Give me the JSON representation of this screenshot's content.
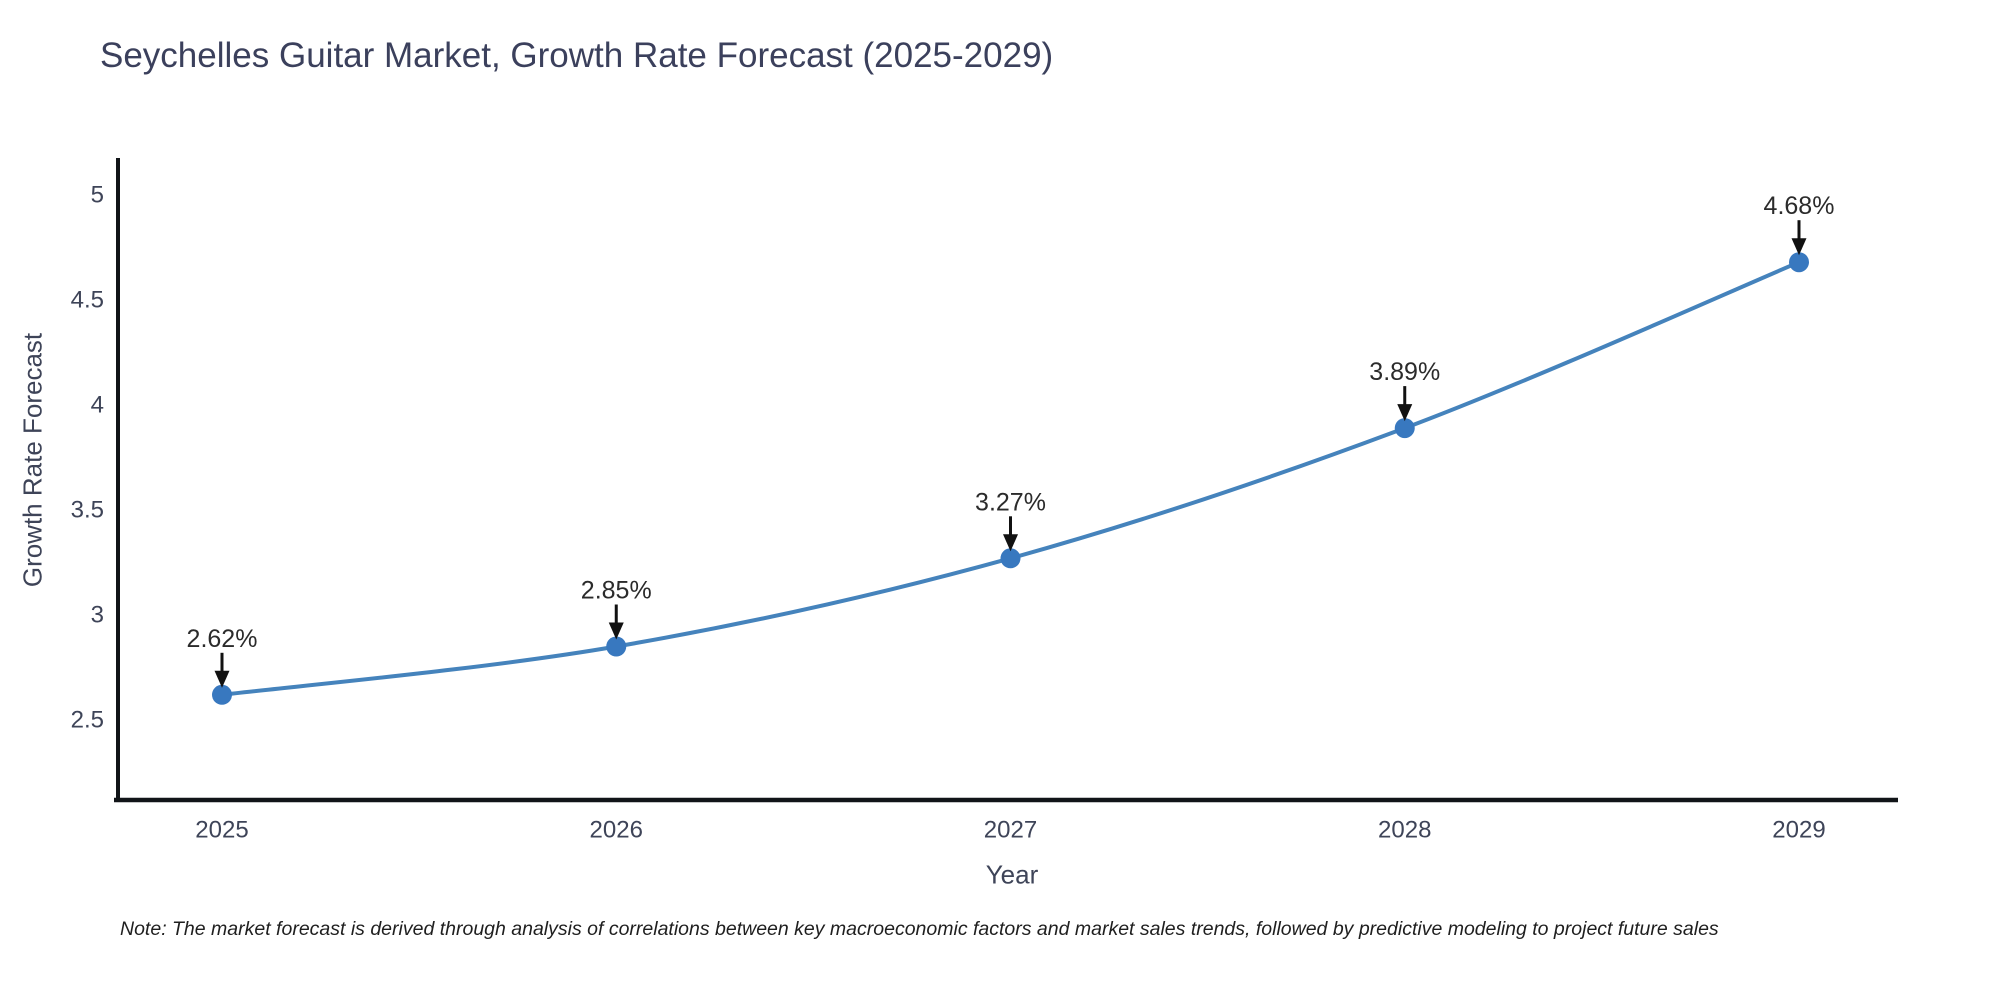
{
  "title": "Seychelles Guitar Market, Growth Rate Forecast (2025-2029)",
  "note": "Note: The market forecast is derived through analysis of correlations between key macroeconomic factors and market sales trends, followed by predictive modeling to project future sales",
  "chart_data": {
    "type": "line",
    "title": "Seychelles Guitar Market, Growth Rate Forecast (2025-2029)",
    "xlabel": "Year",
    "ylabel": "Growth Rate Forecast",
    "x": [
      2025,
      2026,
      2027,
      2028,
      2029
    ],
    "categories": [
      "2025",
      "2026",
      "2027",
      "2028",
      "2029"
    ],
    "series": [
      {
        "name": "Growth Rate Forecast",
        "values": [
          2.62,
          2.85,
          3.27,
          3.89,
          4.68
        ]
      }
    ],
    "point_labels": [
      "2.62%",
      "2.85%",
      "3.27%",
      "3.89%",
      "4.68%"
    ],
    "yticks": [
      2.5,
      3,
      3.5,
      4,
      4.5,
      5
    ],
    "ytick_labels": [
      "2.5",
      "3",
      "3.5",
      "4",
      "4.5",
      "5"
    ],
    "ylim": [
      2.12,
      5.18
    ],
    "xlim": [
      2024.74,
      2029.25
    ],
    "grid": false,
    "legend": "none",
    "line_shape": "spline",
    "markers": true,
    "annotations": "value labels with black down-arrows above each point",
    "colors": {
      "line": "#4583bc",
      "marker": "#3878bf",
      "axis": "#111418",
      "tick_text": "#3e4458",
      "title_text": "#3b405c",
      "annotation_text": "#2b2b2b",
      "arrow": "#111111",
      "background": "#ffffff"
    }
  }
}
